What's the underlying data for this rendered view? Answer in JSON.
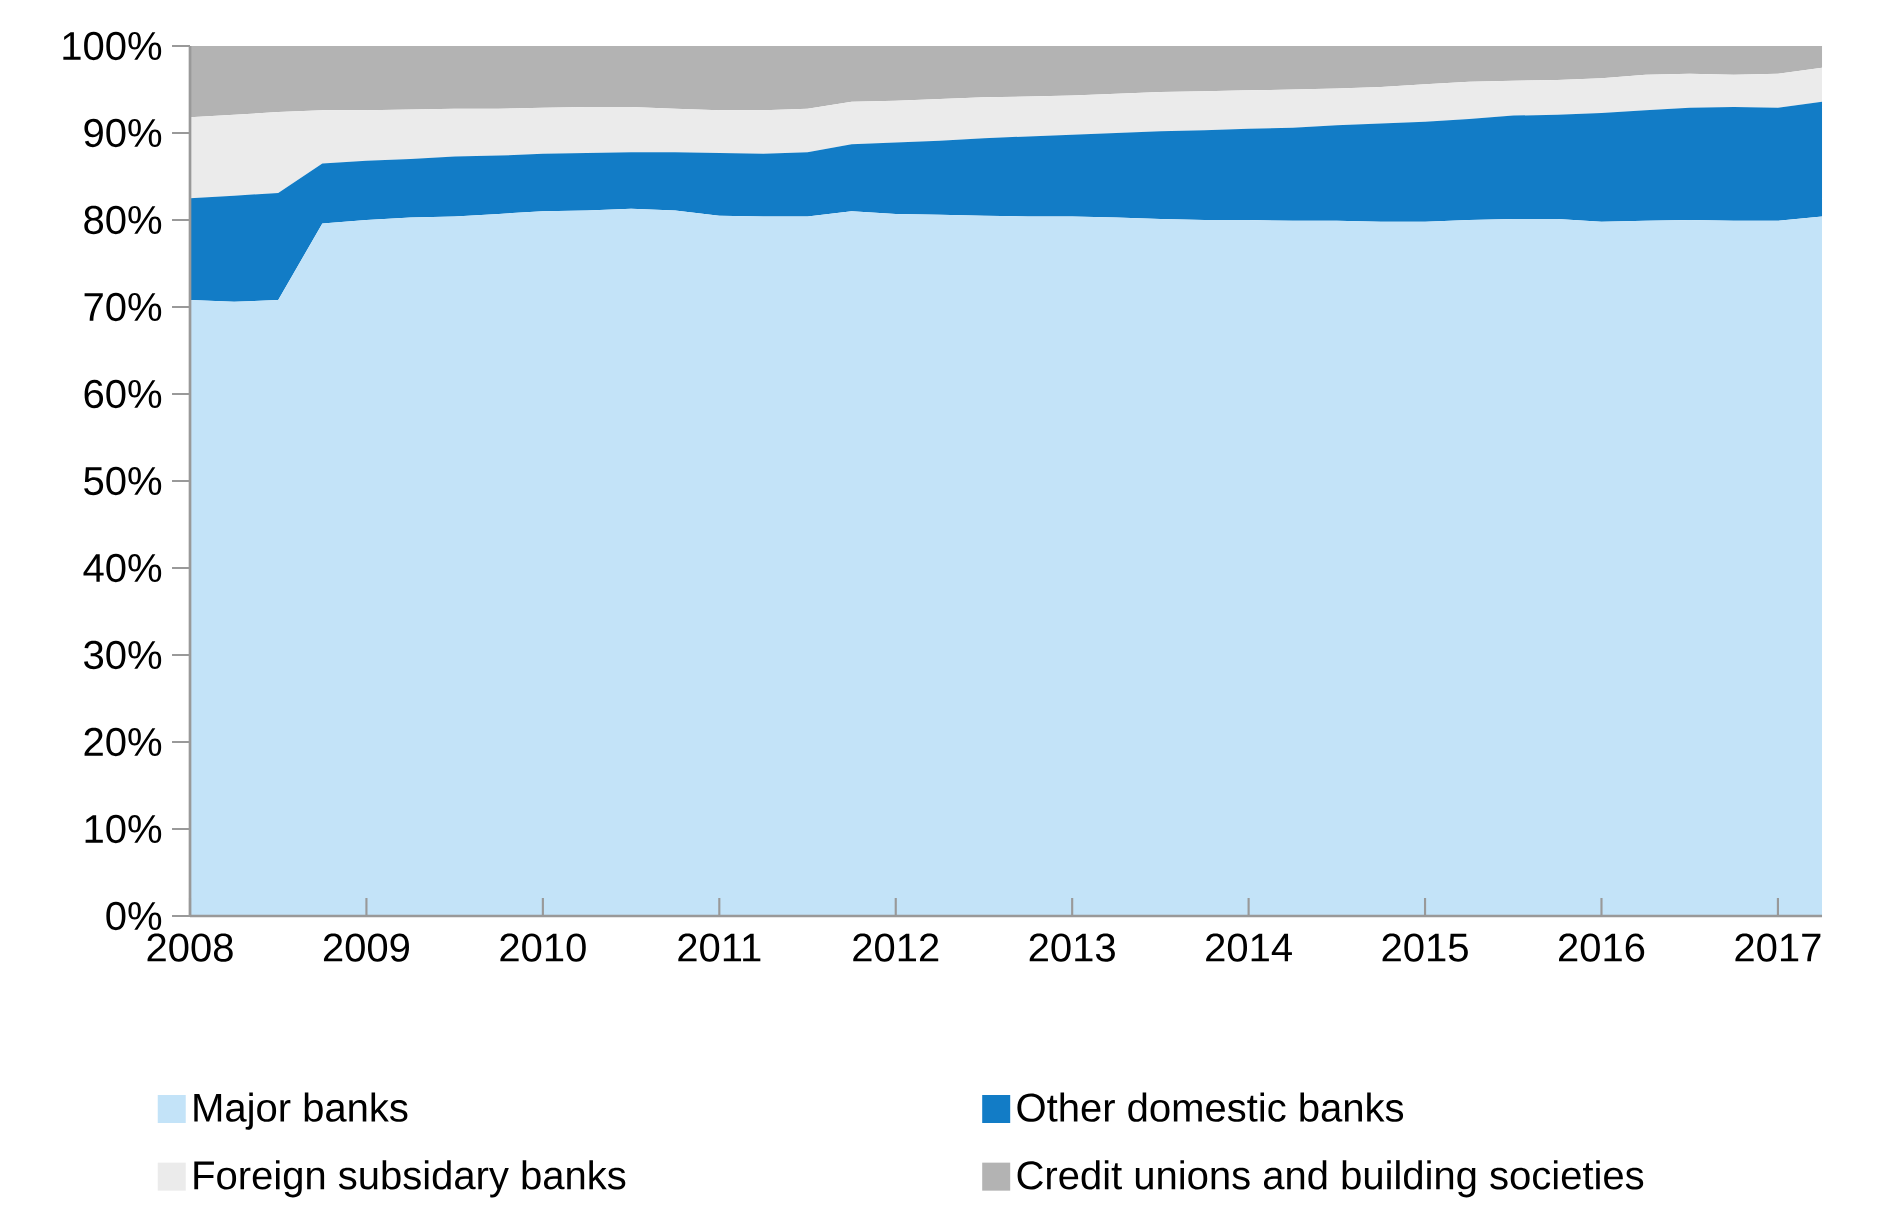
{
  "chart_data": {
    "type": "area",
    "stacked": true,
    "legend": "bottom",
    "x": [
      2008.0,
      2008.25,
      2008.5,
      2008.75,
      2009.0,
      2009.25,
      2009.5,
      2009.75,
      2010.0,
      2010.25,
      2010.5,
      2010.75,
      2011.0,
      2011.25,
      2011.5,
      2011.75,
      2012.0,
      2012.25,
      2012.5,
      2012.75,
      2013.0,
      2013.25,
      2013.5,
      2013.75,
      2014.0,
      2014.25,
      2014.5,
      2014.75,
      2015.0,
      2015.25,
      2015.5,
      2015.75,
      2016.0,
      2016.25,
      2016.5,
      2016.75,
      2017.0,
      2017.25
    ],
    "series": [
      {
        "name": "Major banks",
        "color": "#c3e3f8",
        "values": [
          70.8,
          70.6,
          70.8,
          79.6,
          80.0,
          80.3,
          80.4,
          80.7,
          81.0,
          81.1,
          81.3,
          81.1,
          80.5,
          80.4,
          80.4,
          81.0,
          80.7,
          80.6,
          80.5,
          80.4,
          80.4,
          80.3,
          80.1,
          80.0,
          80.0,
          79.9,
          79.9,
          79.8,
          79.8,
          80.0,
          80.1,
          80.1,
          79.8,
          79.9,
          80.0,
          79.9,
          79.9,
          80.4
        ]
      },
      {
        "name": "Other domestic banks",
        "color": "#127cc6",
        "values": [
          11.7,
          12.2,
          12.3,
          6.9,
          6.8,
          6.7,
          6.9,
          6.7,
          6.6,
          6.6,
          6.5,
          6.7,
          7.2,
          7.2,
          7.4,
          7.7,
          8.2,
          8.5,
          8.9,
          9.2,
          9.4,
          9.7,
          10.1,
          10.3,
          10.5,
          10.7,
          11.0,
          11.3,
          11.5,
          11.6,
          11.9,
          12.0,
          12.5,
          12.7,
          12.9,
          13.1,
          13.0,
          13.2
        ]
      },
      {
        "name": "Foreign subsidary banks",
        "color": "#ebebeb",
        "values": [
          9.3,
          9.3,
          9.3,
          6.1,
          5.8,
          5.7,
          5.5,
          5.4,
          5.3,
          5.3,
          5.2,
          5.0,
          4.9,
          5.0,
          5.0,
          4.9,
          4.8,
          4.8,
          4.7,
          4.6,
          4.5,
          4.5,
          4.5,
          4.5,
          4.4,
          4.4,
          4.2,
          4.2,
          4.3,
          4.3,
          4.0,
          4.0,
          4.0,
          4.1,
          3.9,
          3.7,
          3.9,
          3.9
        ]
      },
      {
        "name": "Credit unions and building societies",
        "color": "#b3b3b3",
        "values": [
          8.2,
          7.9,
          7.6,
          7.4,
          7.4,
          7.3,
          7.2,
          7.2,
          7.1,
          7.0,
          7.0,
          7.2,
          7.4,
          7.4,
          7.2,
          6.4,
          6.3,
          6.1,
          5.9,
          5.8,
          5.7,
          5.5,
          5.3,
          5.2,
          5.1,
          5.0,
          4.9,
          4.7,
          4.4,
          4.1,
          4.0,
          3.9,
          3.7,
          3.3,
          3.2,
          3.3,
          3.2,
          2.5
        ]
      }
    ],
    "xlim": [
      2008,
      2017.25
    ],
    "ylim": [
      0,
      100
    ],
    "xticks": [
      2008,
      2009,
      2010,
      2011,
      2012,
      2013,
      2014,
      2015,
      2016,
      2017
    ],
    "yticks": [
      {
        "value": 0,
        "label": "0%"
      },
      {
        "value": 10,
        "label": "10%"
      },
      {
        "value": 20,
        "label": "20%"
      },
      {
        "value": 30,
        "label": "30%"
      },
      {
        "value": 40,
        "label": "40%"
      },
      {
        "value": 50,
        "label": "50%"
      },
      {
        "value": 60,
        "label": "60%"
      },
      {
        "value": 70,
        "label": "70%"
      },
      {
        "value": 80,
        "label": "80%"
      },
      {
        "value": 90,
        "label": "90%"
      },
      {
        "value": 100,
        "label": "100%"
      }
    ]
  }
}
